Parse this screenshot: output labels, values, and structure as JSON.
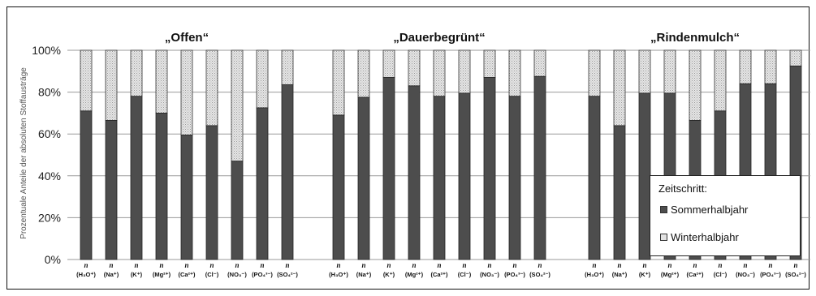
{
  "chart_data": {
    "type": "bar",
    "stacked": true,
    "ylabel": "Prozentuale Anteile der absoluten Stoffausträge",
    "ylim": [
      0,
      100
    ],
    "yticks": [
      "0%",
      "20%",
      "40%",
      "60%",
      "80%",
      "100%"
    ],
    "grid": true,
    "legend_position": "bottom-right",
    "n_label": "n",
    "categories": [
      "(H₃O⁺)",
      "(Na⁺)",
      "(K⁺)",
      "(Mg²⁺)",
      "(Ca²⁺)",
      "(Cl⁻)",
      "(NO₃⁻)",
      "(PO₄³⁻)",
      "(SO₄²⁻)"
    ],
    "legend": {
      "title": "Zeitschritt:",
      "entries": [
        "Sommerhalbjahr",
        "Winterhalbjahr"
      ]
    },
    "series_colors": {
      "Sommerhalbjahr": "#4d4d4d",
      "Winterhalbjahr": "#e2e2e2"
    },
    "groups": [
      {
        "title": "„Offen“",
        "sommer": [
          71,
          66.5,
          78,
          70,
          59.5,
          64,
          47,
          72.5,
          83.5
        ]
      },
      {
        "title": "„Dauerbegrünt“",
        "sommer": [
          69,
          77.5,
          87,
          83,
          78,
          79.5,
          87,
          78,
          87.5
        ]
      },
      {
        "title": "„Rindenmulch“",
        "sommer": [
          78,
          64,
          79.5,
          79.5,
          66.5,
          71,
          84,
          84,
          92.5
        ]
      }
    ]
  }
}
